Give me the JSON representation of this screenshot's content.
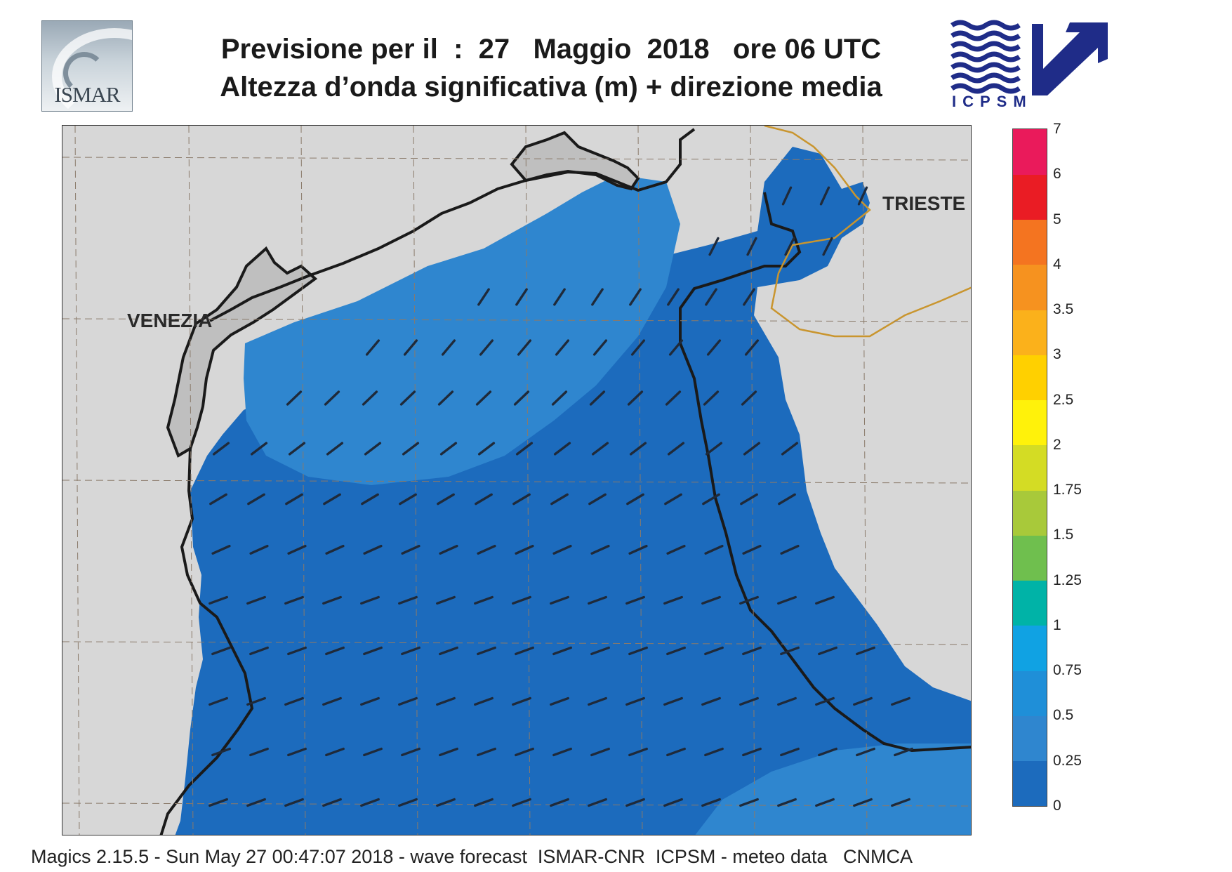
{
  "header": {
    "logo_left": "ISMAR",
    "logo_right": "ICPSM",
    "title_line_1": "Previsione per il  :  27   Maggio  2018   ore 06 UTC",
    "title_line_2": "Altezza d’onda significativa (m) + direzione media"
  },
  "map": {
    "labels": {
      "venezia": "VENEZIA",
      "trieste": "TRIESTE"
    },
    "colors": {
      "land": "#d7d7d7",
      "coastline": "#1a1a1a",
      "border": "#c9952e",
      "grid": "#8a7a6a",
      "sea_0_025": "#1c6bbd",
      "sea_025_05": "#2f86cf",
      "arrow": "#1f2a3a"
    }
  },
  "legend": {
    "bands": [
      {
        "from": "0",
        "to": "0.25",
        "color": "#1c6bbd"
      },
      {
        "from": "0.25",
        "to": "0.5",
        "color": "#2f86cf"
      },
      {
        "from": "0.5",
        "to": "0.75",
        "color": "#1f8fd8"
      },
      {
        "from": "0.75",
        "to": "1",
        "color": "#10a2e3"
      },
      {
        "from": "1",
        "to": "1.25",
        "color": "#00b3a7"
      },
      {
        "from": "1.25",
        "to": "1.5",
        "color": "#6fbf4e"
      },
      {
        "from": "1.5",
        "to": "1.75",
        "color": "#a8c93a"
      },
      {
        "from": "1.75",
        "to": "2",
        "color": "#d4dc24"
      },
      {
        "from": "2",
        "to": "2.5",
        "color": "#fff20a"
      },
      {
        "from": "2.5",
        "to": "3",
        "color": "#ffd000"
      },
      {
        "from": "3",
        "to": "3.5",
        "color": "#fbb11b"
      },
      {
        "from": "3.5",
        "to": "4",
        "color": "#f6921f"
      },
      {
        "from": "4",
        "to": "5",
        "color": "#f47420"
      },
      {
        "from": "5",
        "to": "6",
        "color": "#ea1c24"
      },
      {
        "from": "6",
        "to": "7",
        "color": "#ea1a5b"
      }
    ],
    "ticks": [
      "0",
      "0.25",
      "0.5",
      "0.75",
      "1",
      "1.25",
      "1.5",
      "1.75",
      "2",
      "2.5",
      "3",
      "3.5",
      "4",
      "5",
      "6",
      "7"
    ]
  },
  "footer": "Magics 2.15.5 - Sun May 27 00:47:07 2018 - wave forecast  ISMAR-CNR  ICPSM - meteo data   CNMCA"
}
